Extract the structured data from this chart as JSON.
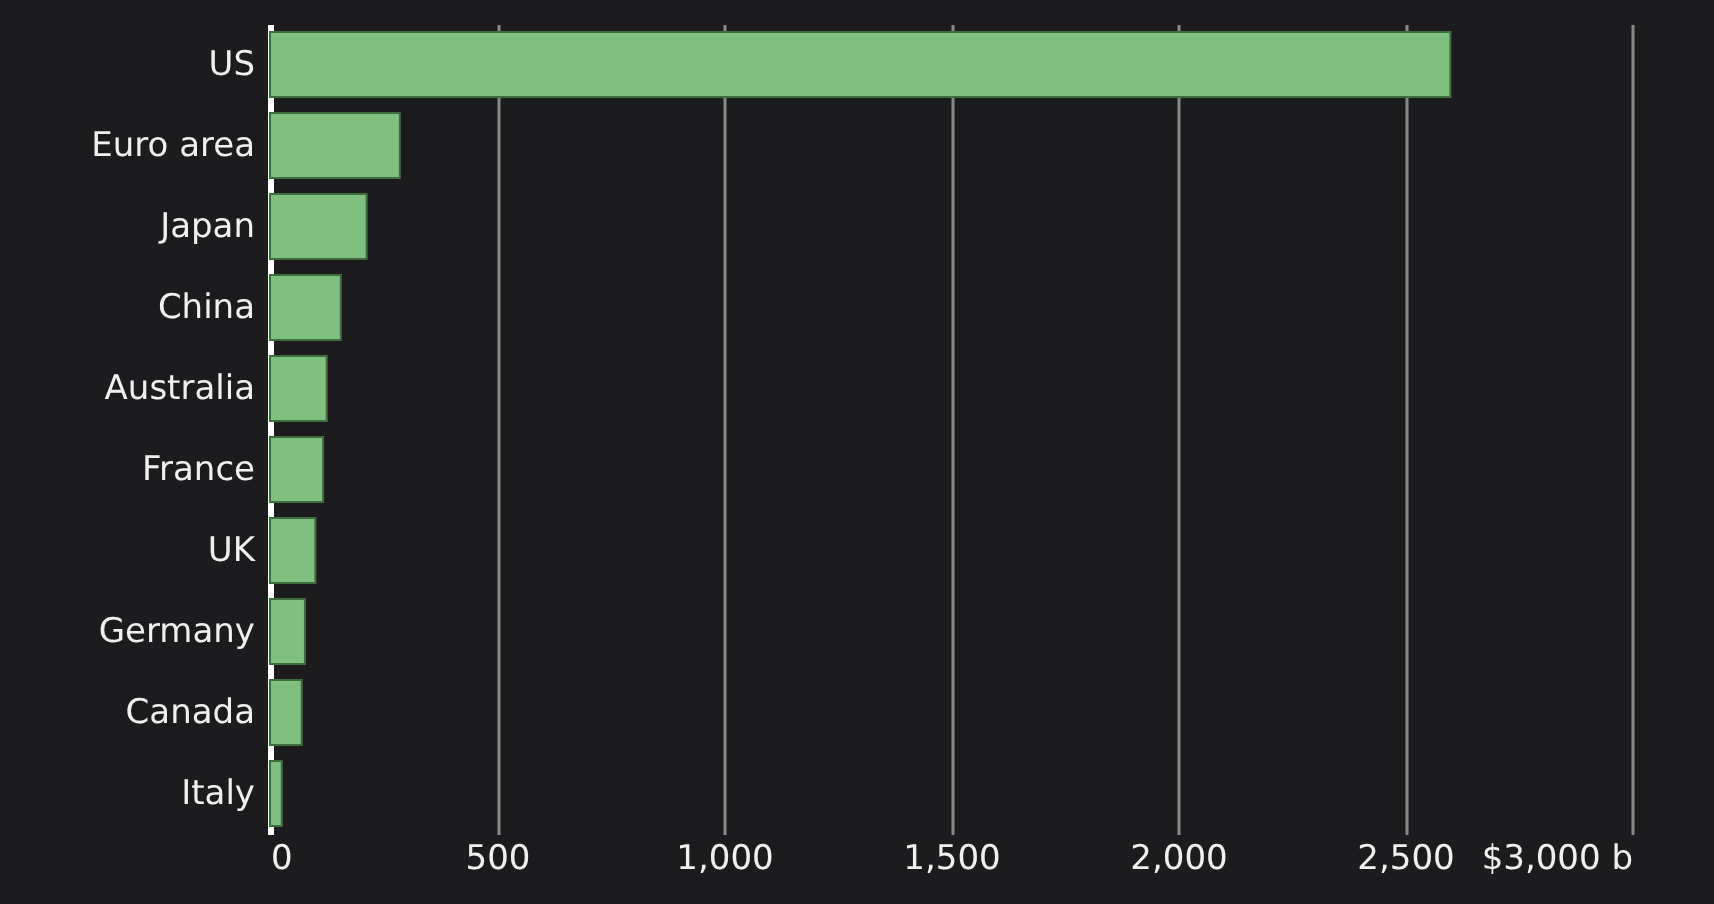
{
  "chart_data": {
    "type": "bar",
    "orientation": "horizontal",
    "categories": [
      "US",
      "Euro area",
      "Japan",
      "China",
      "Australia",
      "France",
      "UK",
      "Germany",
      "Canada",
      "Italy"
    ],
    "values": [
      2600,
      286,
      213,
      156,
      125,
      117,
      100,
      77,
      70,
      26
    ],
    "color": "#7fbf7f",
    "xlim": [
      0,
      3000
    ],
    "xticks": [
      0,
      {
        "value": 500,
        "label": "500"
      },
      {
        "value": 1000,
        "label": "1,000"
      },
      {
        "value": 1500,
        "label": "1,500"
      },
      {
        "value": 2000,
        "label": "2,000"
      },
      {
        "value": 2500,
        "label": "2,500"
      },
      {
        "value": 3000,
        "label": "$3,000 b"
      }
    ],
    "grid": "x"
  }
}
